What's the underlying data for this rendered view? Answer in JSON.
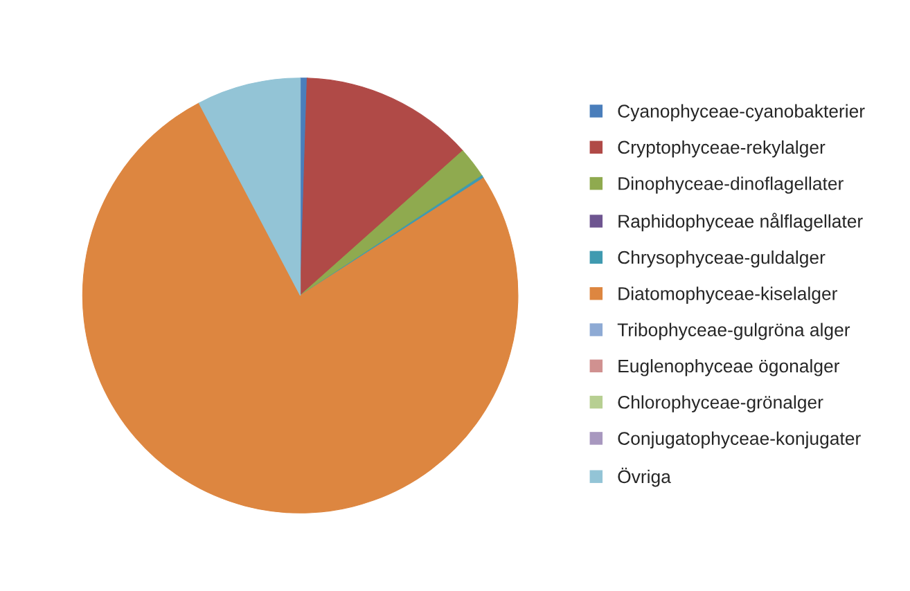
{
  "chart_data": {
    "type": "pie",
    "categories": [
      "Cyanophyceae-cyanobakterier",
      "Cryptophyceae-rekylalger",
      "Dinophyceae-dinoflagellater",
      "Raphidophyceae nålflagellater",
      "Chrysophyceae-guldalger",
      "Diatomophyceae-kiselalger",
      "Tribophyceae-gulgröna alger",
      "Euglenophyceae ögonalger",
      "Chlorophyceae-grönalger",
      "Conjugatophyceae-konjugater",
      "Övriga"
    ],
    "values": [
      0.5,
      12.9,
      2.3,
      0,
      0.2,
      76.3,
      0,
      0,
      0,
      0,
      7.7
    ],
    "colors": [
      "#4a7ebb",
      "#b04a47",
      "#8faa4f",
      "#6e5590",
      "#3f9ab0",
      "#dd8640",
      "#8eaad4",
      "#d09190",
      "#b7cf92",
      "#a898bf",
      "#93c4d6"
    ],
    "legend": "right"
  }
}
